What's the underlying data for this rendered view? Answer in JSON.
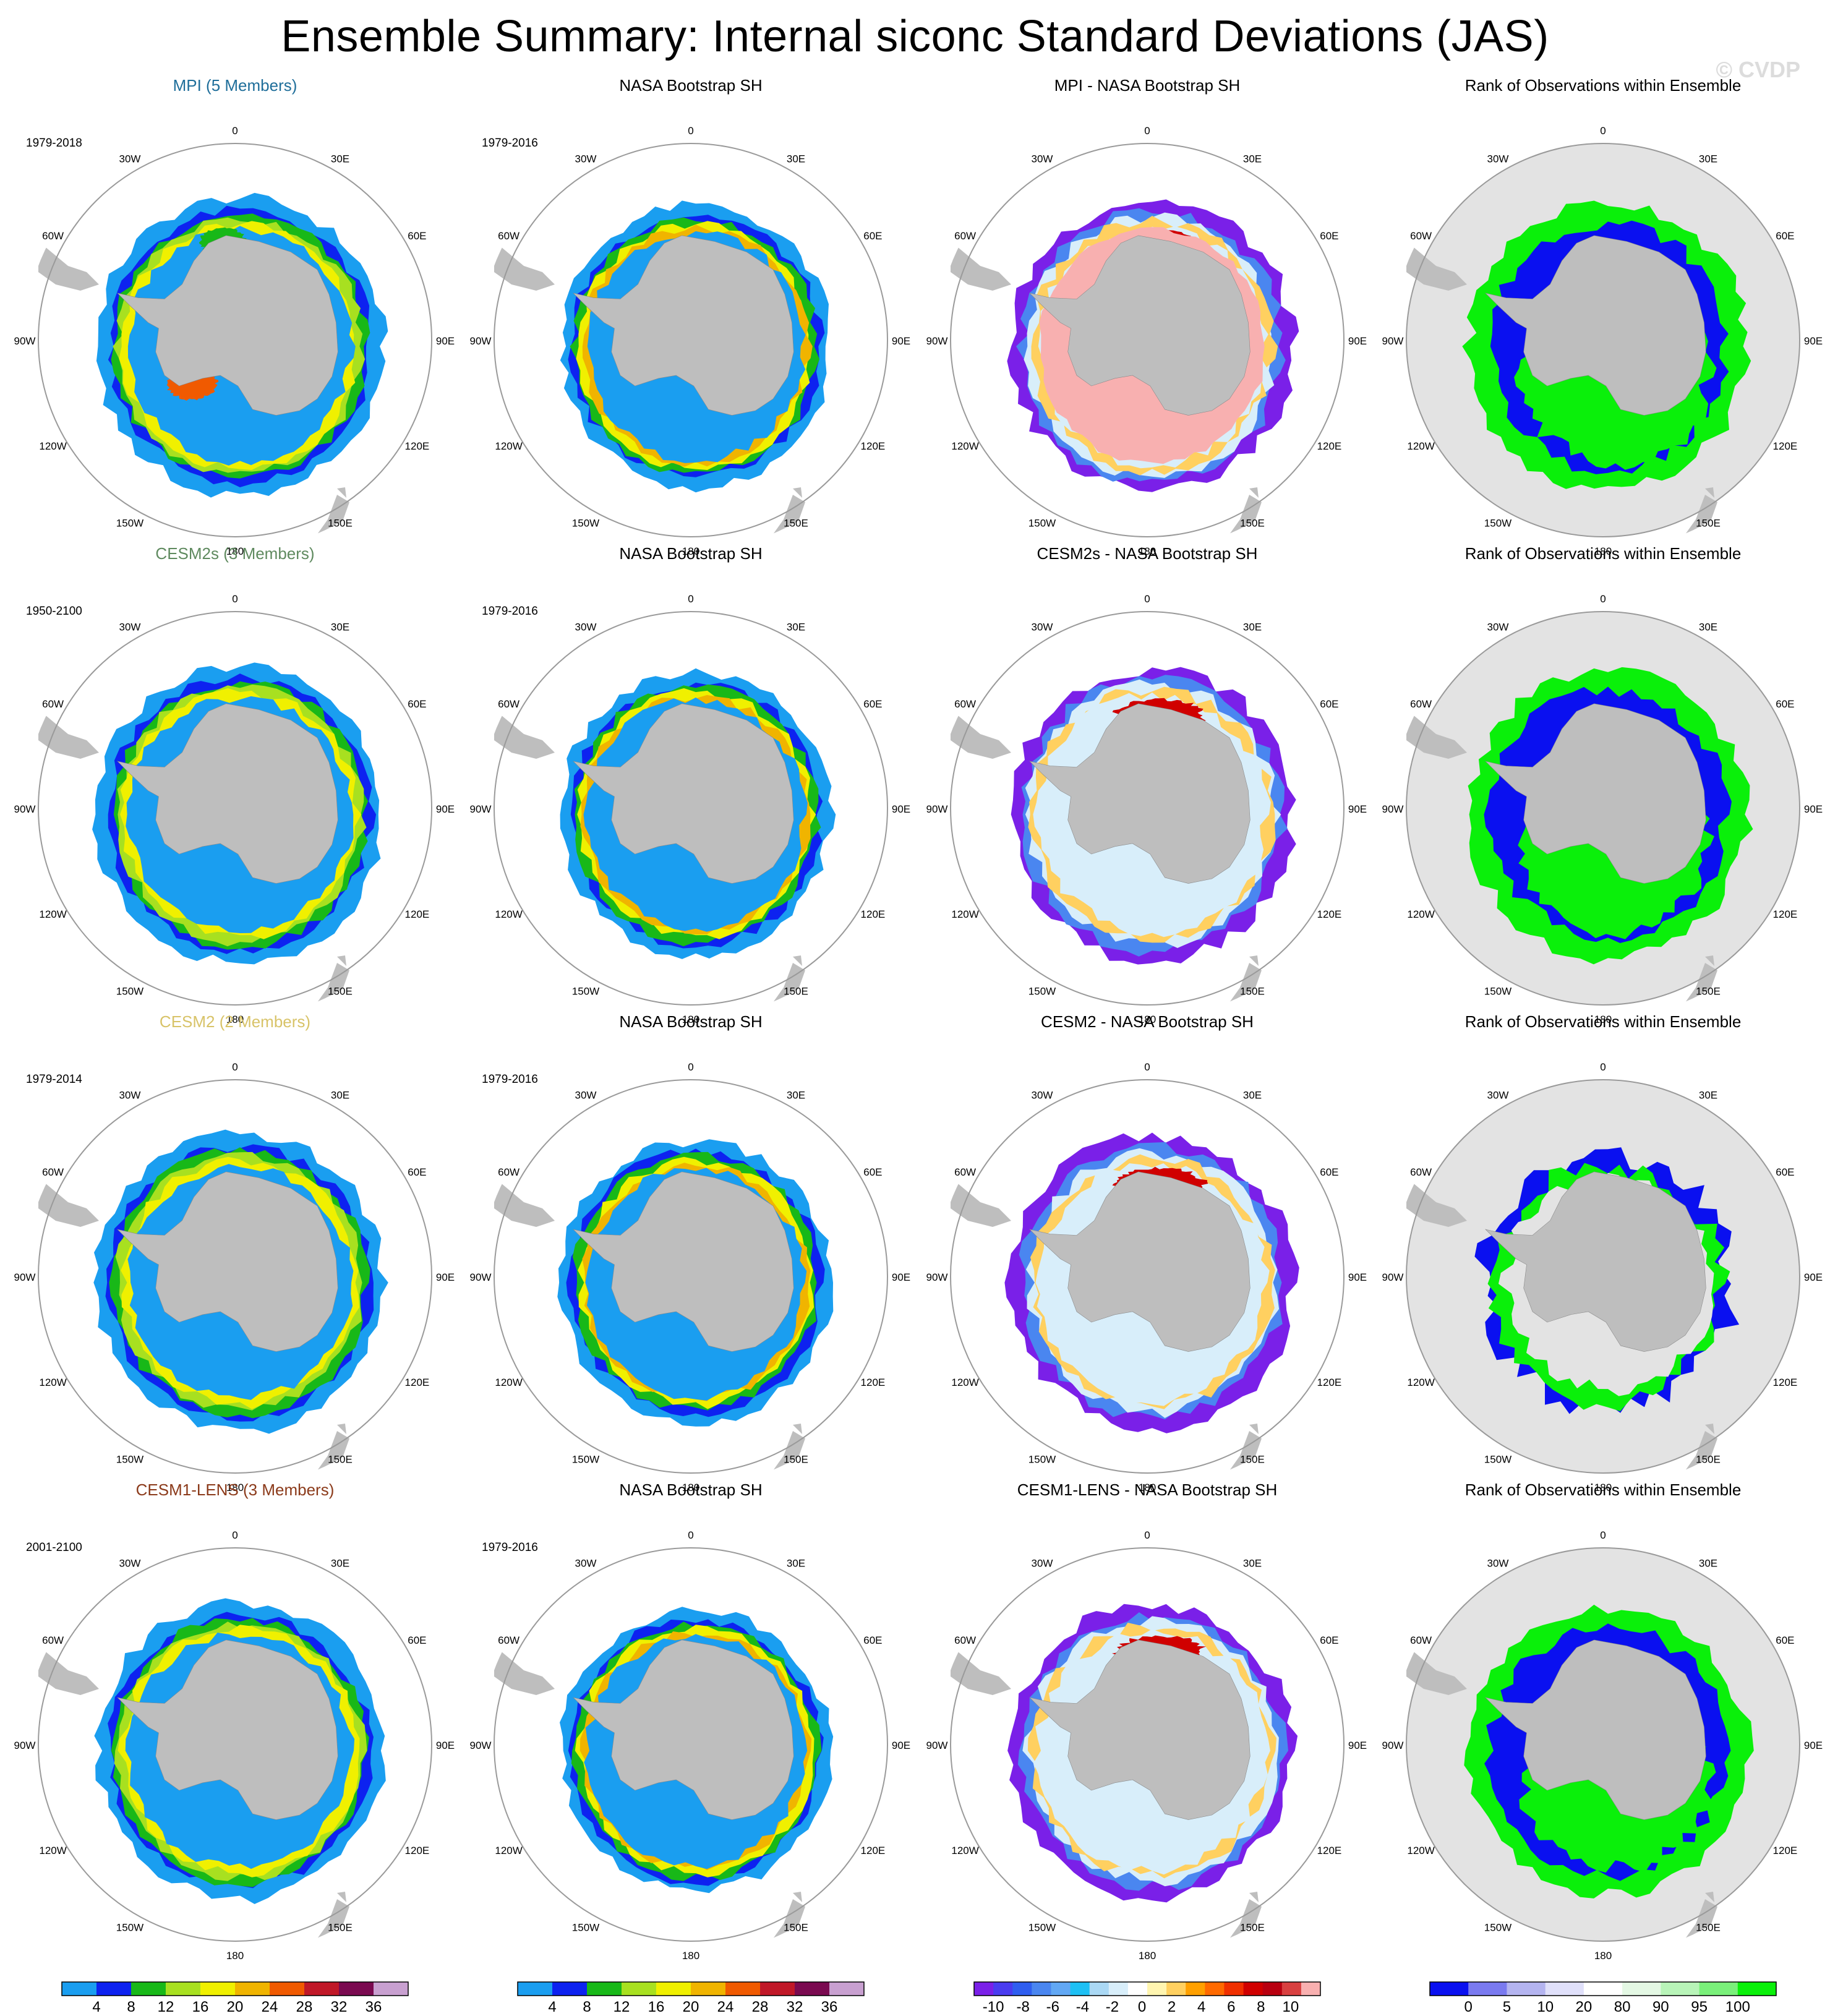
{
  "title": "Ensemble Summary: Internal siconc Standard Deviations (JAS)",
  "watermark": "© CVDP",
  "lon_labels": [
    "0",
    "30E",
    "60E",
    "90E",
    "120E",
    "150E",
    "180",
    "150W",
    "120W",
    "90W",
    "60W",
    "30W"
  ],
  "colors": {
    "land": "#bebebe",
    "rank_background": "#e3e3e3",
    "circle": "#9a9a9a"
  },
  "chart_data": [
    {
      "type": "heatmap",
      "row": 0,
      "col": 0,
      "title": "MPI (5 Members)",
      "title_color": "#1f6e9a",
      "period": "1979-2018",
      "kind": "model"
    },
    {
      "type": "heatmap",
      "row": 0,
      "col": 1,
      "title": "NASA Bootstrap SH",
      "title_color": "#000000",
      "period": "1979-2016",
      "kind": "obs"
    },
    {
      "type": "heatmap",
      "row": 0,
      "col": 2,
      "title": "MPI - NASA Bootstrap SH",
      "title_color": "#000000",
      "period": "",
      "kind": "diff"
    },
    {
      "type": "heatmap",
      "row": 0,
      "col": 3,
      "title": "Rank of Observations within Ensemble",
      "title_color": "#000000",
      "period": "",
      "kind": "rank"
    },
    {
      "type": "heatmap",
      "row": 1,
      "col": 0,
      "title": "CESM2s (3 Members)",
      "title_color": "#5f8a5f",
      "period": "1950-2100",
      "kind": "model"
    },
    {
      "type": "heatmap",
      "row": 1,
      "col": 1,
      "title": "NASA Bootstrap SH",
      "title_color": "#000000",
      "period": "1979-2016",
      "kind": "obs"
    },
    {
      "type": "heatmap",
      "row": 1,
      "col": 2,
      "title": "CESM2s - NASA Bootstrap SH",
      "title_color": "#000000",
      "period": "",
      "kind": "diff"
    },
    {
      "type": "heatmap",
      "row": 1,
      "col": 3,
      "title": "Rank of Observations within Ensemble",
      "title_color": "#000000",
      "period": "",
      "kind": "rank"
    },
    {
      "type": "heatmap",
      "row": 2,
      "col": 0,
      "title": "CESM2 (2 Members)",
      "title_color": "#d8c368",
      "period": "1979-2014",
      "kind": "model"
    },
    {
      "type": "heatmap",
      "row": 2,
      "col": 1,
      "title": "NASA Bootstrap SH",
      "title_color": "#000000",
      "period": "1979-2016",
      "kind": "obs"
    },
    {
      "type": "heatmap",
      "row": 2,
      "col": 2,
      "title": "CESM2 - NASA Bootstrap SH",
      "title_color": "#000000",
      "period": "",
      "kind": "diff"
    },
    {
      "type": "heatmap",
      "row": 2,
      "col": 3,
      "title": "Rank of Observations within Ensemble",
      "title_color": "#000000",
      "period": "",
      "kind": "rank"
    },
    {
      "type": "heatmap",
      "row": 3,
      "col": 0,
      "title": "CESM1-LENS (3 Members)",
      "title_color": "#8b3a1a",
      "period": "2001-2100",
      "kind": "model"
    },
    {
      "type": "heatmap",
      "row": 3,
      "col": 1,
      "title": "NASA Bootstrap SH",
      "title_color": "#000000",
      "period": "1979-2016",
      "kind": "obs"
    },
    {
      "type": "heatmap",
      "row": 3,
      "col": 2,
      "title": "CESM1-LENS - NASA Bootstrap SH",
      "title_color": "#000000",
      "period": "",
      "kind": "diff"
    },
    {
      "type": "heatmap",
      "row": 3,
      "col": 3,
      "title": "Rank of Observations within Ensemble",
      "title_color": "#000000",
      "period": "",
      "kind": "rank"
    }
  ],
  "colorbars": [
    {
      "col": 0,
      "unit": "%",
      "labels": [
        "4",
        "8",
        "12",
        "16",
        "20",
        "24",
        "28",
        "32",
        "36"
      ],
      "colors": [
        "#1a9ef0",
        "#0d22f0",
        "#18b818",
        "#a8e020",
        "#f0f000",
        "#f0b400",
        "#f05a00",
        "#c01828",
        "#7a0a50",
        "#c8a0d0"
      ]
    },
    {
      "col": 1,
      "unit": "%",
      "labels": [
        "4",
        "8",
        "12",
        "16",
        "20",
        "24",
        "28",
        "32",
        "36"
      ],
      "colors": [
        "#1a9ef0",
        "#0d22f0",
        "#18b818",
        "#a8e020",
        "#f0f000",
        "#f0b400",
        "#f05a00",
        "#c01828",
        "#7a0a50",
        "#c8a0d0"
      ]
    },
    {
      "col": 2,
      "unit": "%",
      "labels": [
        "-10",
        "-8",
        "-6",
        "-4",
        "-2",
        "0",
        "2",
        "4",
        "6",
        "8",
        "10"
      ],
      "colors": [
        "#7a20e8",
        "#4a3cf0",
        "#2f5ef0",
        "#4a86f0",
        "#62a8f4",
        "#1ec0f4",
        "#aad8f4",
        "#d8eefa",
        "#ffffff",
        "#fff5b0",
        "#ffd060",
        "#ffa000",
        "#ff6a00",
        "#f03000",
        "#d00000",
        "#b80010",
        "#d84040",
        "#f8b0b0"
      ]
    },
    {
      "col": 3,
      "unit": "%",
      "labels": [
        "0",
        "5",
        "10",
        "20",
        "80",
        "90",
        "95",
        "100"
      ],
      "colors": [
        "#0a10f0",
        "#7a7af0",
        "#b4b4f0",
        "#e0e0fa",
        "#ffffff",
        "#e4f8e4",
        "#b8f4b8",
        "#7af07a",
        "#0af00a"
      ]
    }
  ]
}
